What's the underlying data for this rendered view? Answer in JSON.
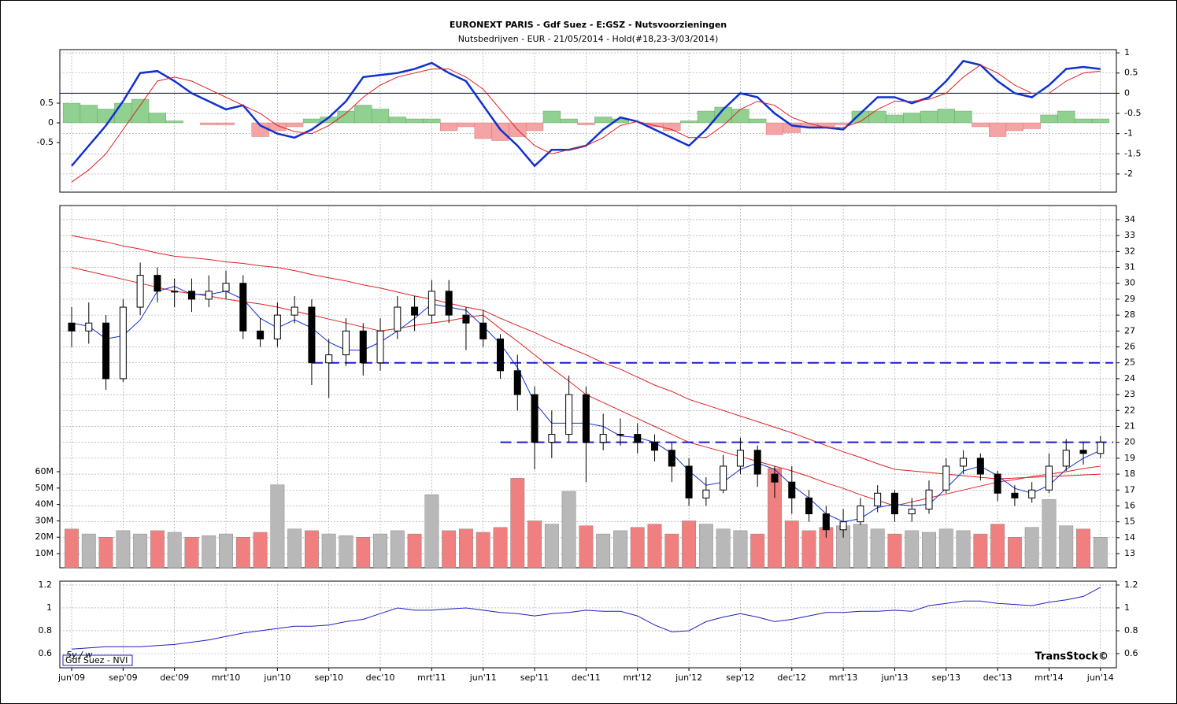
{
  "chart_data": [
    {
      "type": "macd",
      "title": "EURONEXT PARIS - Gdf Suez - E:GSZ - Nutsvoorzieningen",
      "subtitle": "Nutsbedrijven - EUR - 21/05/2014 - Hold(#18,23-3/03/2014)",
      "ylim": [
        -2.45,
        1.08
      ],
      "yticks": [
        1,
        0.5,
        0,
        -0.5,
        -1,
        -1.5,
        -2
      ],
      "y2lim": [
        -1.76,
        1.86
      ],
      "y2ticks": [
        0.5,
        0,
        -0.5
      ],
      "grid": true,
      "series": [
        {
          "color": "#1030d0",
          "values": [
            -1.8,
            -1.3,
            -0.8,
            -0.2,
            0.5,
            0.55,
            0.3,
            0.0,
            -0.2,
            -0.4,
            -0.3,
            -0.8,
            -1.0,
            -1.1,
            -0.9,
            -0.6,
            -0.2,
            0.4,
            0.45,
            0.5,
            0.6,
            0.75,
            0.5,
            0.3,
            -0.3,
            -0.9,
            -1.3,
            -1.8,
            -1.4,
            -1.4,
            -1.3,
            -0.9,
            -0.6,
            -0.7,
            -0.9,
            -1.1,
            -1.3,
            -0.9,
            -0.4,
            0.0,
            -0.1,
            -0.5,
            -0.8,
            -0.85,
            -0.85,
            -0.9,
            -0.5,
            -0.1,
            -0.1,
            -0.25,
            -0.1,
            0.3,
            0.8,
            0.7,
            0.3,
            0.0,
            -0.1,
            0.2,
            0.6,
            0.65,
            0.6
          ]
        },
        {
          "color": "#e02020",
          "values": [
            -2.2,
            -1.9,
            -1.5,
            -0.9,
            -0.3,
            0.3,
            0.4,
            0.3,
            0.1,
            -0.1,
            -0.3,
            -0.5,
            -0.8,
            -0.95,
            -1.0,
            -0.8,
            -0.5,
            -0.1,
            0.2,
            0.4,
            0.5,
            0.6,
            0.6,
            0.4,
            0.1,
            -0.4,
            -0.9,
            -1.3,
            -1.5,
            -1.4,
            -1.3,
            -1.1,
            -0.8,
            -0.7,
            -0.8,
            -0.9,
            -1.1,
            -1.1,
            -0.8,
            -0.4,
            -0.2,
            -0.3,
            -0.6,
            -0.75,
            -0.85,
            -0.85,
            -0.7,
            -0.4,
            -0.2,
            -0.2,
            -0.15,
            0.0,
            0.4,
            0.7,
            0.5,
            0.2,
            0.0,
            0.0,
            0.3,
            0.5,
            0.55
          ]
        }
      ],
      "histogram": {
        "axis": "y2",
        "pos_color": "#90d090",
        "neg_color": "#f4a4a4",
        "values": [
          0.5,
          0.45,
          0.35,
          0.5,
          0.6,
          0.25,
          0.05,
          0.0,
          -0.05,
          -0.05,
          0.0,
          -0.35,
          -0.2,
          -0.1,
          0.1,
          0.15,
          0.3,
          0.45,
          0.35,
          0.15,
          0.1,
          0.1,
          -0.2,
          -0.1,
          -0.4,
          -0.45,
          -0.35,
          -0.2,
          0.3,
          0.1,
          -0.05,
          0.15,
          0.1,
          0.0,
          -0.1,
          -0.2,
          0.05,
          0.3,
          0.4,
          0.35,
          0.1,
          -0.3,
          -0.25,
          -0.1,
          -0.1,
          -0.05,
          0.3,
          0.3,
          0.2,
          0.25,
          0.3,
          0.35,
          0.3,
          -0.1,
          -0.35,
          -0.2,
          -0.15,
          0.2,
          0.3,
          0.1,
          0.1
        ]
      }
    },
    {
      "type": "candlestick",
      "ylim": [
        12.11,
        34.89
      ],
      "yticks": [
        13,
        14,
        15,
        16,
        17,
        18,
        19,
        20,
        21,
        22,
        23,
        24,
        25,
        26,
        27,
        28,
        29,
        30,
        31,
        32,
        33,
        34
      ],
      "y2lim": [
        1.35,
        222.5
      ],
      "y2ticks": [
        {
          "value": 10,
          "label": "10M"
        },
        {
          "value": 20,
          "label": "20M"
        },
        {
          "value": 30,
          "label": "30M"
        },
        {
          "value": 40,
          "label": "40M"
        },
        {
          "value": 50,
          "label": "50M"
        },
        {
          "value": 60,
          "label": "60M"
        }
      ],
      "grid": true,
      "open": [
        27.5,
        27,
        27.5,
        24,
        28.5,
        30.5,
        29.5,
        29.5,
        29,
        29.5,
        30,
        27,
        26.5,
        28,
        28.5,
        25,
        25.5,
        27,
        25,
        27,
        28.5,
        28,
        29.5,
        28,
        27.5,
        26.5,
        24.5,
        23,
        20,
        20.5,
        23,
        20,
        20.5,
        20.5,
        20,
        19.5,
        18.5,
        16.5,
        17,
        18.5,
        19.5,
        18,
        17.5,
        16.5,
        15.5,
        14.5,
        15,
        16,
        16.8,
        15.5,
        15.8,
        17,
        18.5,
        19,
        18,
        16.8,
        16.5,
        17,
        18.5,
        19.5,
        19.3
      ],
      "high": [
        28.5,
        28.8,
        28,
        29,
        31.3,
        31,
        30.3,
        30.3,
        30.5,
        30.8,
        30.5,
        27.8,
        28.8,
        29.2,
        29,
        26.5,
        27.8,
        27.5,
        27.8,
        29.2,
        29.2,
        30.2,
        30.2,
        28.5,
        28.3,
        26.8,
        25.5,
        23.5,
        22,
        24.2,
        23.5,
        21.8,
        21.5,
        21.2,
        20.5,
        20,
        19,
        17.8,
        19.2,
        20.3,
        19.8,
        18.5,
        18.5,
        17,
        16,
        15.8,
        16.5,
        17.3,
        17,
        16.5,
        17.6,
        19,
        19.5,
        19.3,
        18.2,
        17.3,
        17.5,
        19.3,
        20.2,
        20,
        20.4
      ],
      "low": [
        26,
        26.2,
        23.3,
        23.8,
        28,
        28.8,
        28.5,
        28.2,
        28.5,
        29,
        26.5,
        26,
        26,
        27.5,
        23.6,
        22.8,
        24.8,
        24.2,
        24.5,
        26.5,
        27,
        27.5,
        27.5,
        25.8,
        26,
        24,
        22,
        18.3,
        19,
        20,
        17.5,
        19.5,
        19.8,
        19.3,
        18.8,
        17.5,
        16,
        16,
        16.8,
        18,
        17.2,
        16.5,
        15.5,
        15,
        14,
        14,
        14.8,
        15.6,
        15,
        15,
        15.5,
        16.8,
        18,
        17.6,
        16.3,
        16,
        16.2,
        16.8,
        18.2,
        18.6,
        19
      ],
      "close": [
        27,
        27.5,
        24,
        28.5,
        30.5,
        29.5,
        29.5,
        29,
        29.5,
        30,
        27,
        26.5,
        28,
        28.5,
        25,
        25.5,
        27,
        25,
        27,
        28.5,
        28,
        29.5,
        28,
        27.5,
        26.5,
        24.5,
        23,
        20,
        20.5,
        23,
        20,
        20.5,
        20.5,
        20,
        19.5,
        18.5,
        16.5,
        17,
        18.5,
        19.5,
        18,
        17.5,
        16.5,
        15.5,
        14.5,
        15,
        16,
        16.8,
        15.5,
        15.8,
        17,
        18.5,
        19,
        18,
        16.8,
        16.5,
        17,
        18.5,
        19.5,
        19.3,
        20
      ],
      "volume": [
        25,
        22,
        20,
        24,
        22,
        24,
        23,
        20,
        21,
        22,
        20,
        23,
        52,
        25,
        24,
        22,
        21,
        20,
        22,
        24,
        22,
        46,
        24,
        25,
        23,
        26,
        56,
        30,
        28,
        48,
        27,
        22,
        24,
        26,
        28,
        22,
        30,
        28,
        25,
        24,
        22,
        62,
        30,
        24,
        26,
        27,
        28,
        25,
        22,
        24,
        23,
        25,
        24,
        22,
        28,
        20,
        26,
        43,
        27,
        25,
        20
      ],
      "volume_axis": "y2",
      "up_color": "#b8b8b8",
      "down_color": "#f08080",
      "series": [
        {
          "color": "#e02020",
          "values": [
            33,
            32.8,
            32.6,
            32.35,
            32.15,
            31.9,
            31.7,
            31.6,
            31.5,
            31.35,
            31.25,
            31.1,
            31.0,
            30.8,
            30.55,
            30.35,
            30.15,
            29.9,
            29.7,
            29.45,
            29.2,
            29.0,
            28.75,
            28.5,
            28.3,
            27.8,
            27.35,
            26.9,
            26.4,
            25.95,
            25.5,
            25.0,
            24.6,
            24.1,
            23.6,
            23.2,
            22.7,
            22.35,
            22.0,
            21.65,
            21.3,
            20.95,
            20.6,
            20.2,
            19.8,
            19.4,
            19.05,
            18.65,
            18.3,
            18.2,
            18.1,
            18.0,
            17.9,
            17.8,
            17.7,
            17.75,
            17.8,
            17.85,
            17.9,
            17.95,
            18.0
          ]
        },
        {
          "color": "#e02020",
          "values": [
            31,
            30.75,
            30.5,
            30.25,
            30,
            29.75,
            29.5,
            29.35,
            29.2,
            29.0,
            28.85,
            28.7,
            28.5,
            28.25,
            28.0,
            27.75,
            27.5,
            27.25,
            27.0,
            27.15,
            27.35,
            27.5,
            27.65,
            27.85,
            28.0,
            27.15,
            26.35,
            25.5,
            24.65,
            23.85,
            23.0,
            22.5,
            22.0,
            21.5,
            21.0,
            20.5,
            20.0,
            19.7,
            19.4,
            19.1,
            18.8,
            18.5,
            18.2,
            17.85,
            17.45,
            17.1,
            16.7,
            16.35,
            16.0,
            16.25,
            16.5,
            16.75,
            17.0,
            17.25,
            17.5,
            17.65,
            17.85,
            18.0,
            18.15,
            18.35,
            18.5
          ]
        },
        {
          "color": "#1030d0",
          "values": [
            27.5,
            27.3,
            26.5,
            26.7,
            27.7,
            29.5,
            29.8,
            29.3,
            29.3,
            29.5,
            29,
            27.8,
            27.2,
            27.7,
            27.2,
            26.3,
            25.8,
            25.8,
            26.3,
            27,
            27.8,
            28.7,
            28.5,
            28.3,
            27.3,
            26.2,
            24.7,
            22.5,
            21.2,
            21.2,
            21.2,
            21,
            20.4,
            20.3,
            20,
            19.3,
            18.2,
            17.3,
            17.5,
            18.3,
            18.7,
            18.3,
            17.3,
            16.5,
            15.5,
            15,
            15.2,
            15.9,
            16.1,
            16,
            16.1,
            17.1,
            18.2,
            18.5,
            17.9,
            17.1,
            16.8,
            17.3,
            18.3,
            19,
            19.5
          ]
        }
      ],
      "levels": [
        25,
        20
      ],
      "level_color": "#1a1ad8"
    },
    {
      "type": "line",
      "ylim": [
        0.476,
        1.234
      ],
      "yticks": [
        1.2,
        1,
        0.8,
        0.6
      ],
      "grid": true,
      "note": "5y / w",
      "brand": "TransStock©",
      "categories": [
        "jun'09",
        null,
        null,
        "sep'09",
        null,
        null,
        "dec'09",
        null,
        null,
        "mrt'10",
        null,
        null,
        "jun'10",
        null,
        null,
        "sep'10",
        null,
        null,
        "dec'10",
        null,
        null,
        "mrt'11",
        null,
        null,
        "jun'11",
        null,
        null,
        "sep'11",
        null,
        null,
        "dec'11",
        null,
        null,
        "mrt'12",
        null,
        null,
        "jun'12",
        null,
        null,
        "sep'12",
        null,
        null,
        "dec'12",
        null,
        null,
        "mrt'13",
        null,
        null,
        "jun'13",
        null,
        null,
        "sep'13",
        null,
        null,
        "dec'13",
        null,
        null,
        "mrt'14",
        null,
        null,
        "jun'14"
      ],
      "series": [
        {
          "name": "Gdf Suez - NVI",
          "color": "#1f1fc0",
          "values": [
            0.64,
            0.65,
            0.66,
            0.66,
            0.66,
            0.67,
            0.68,
            0.7,
            0.72,
            0.75,
            0.78,
            0.8,
            0.82,
            0.84,
            0.84,
            0.85,
            0.88,
            0.9,
            0.95,
            1.0,
            0.98,
            0.98,
            0.99,
            1.0,
            0.98,
            0.96,
            0.95,
            0.93,
            0.95,
            0.96,
            0.98,
            0.97,
            0.97,
            0.93,
            0.85,
            0.79,
            0.8,
            0.88,
            0.92,
            0.95,
            0.92,
            0.88,
            0.9,
            0.93,
            0.96,
            0.96,
            0.97,
            0.97,
            0.98,
            0.97,
            1.02,
            1.04,
            1.06,
            1.06,
            1.04,
            1.03,
            1.02,
            1.05,
            1.07,
            1.1,
            1.18
          ]
        }
      ]
    }
  ]
}
